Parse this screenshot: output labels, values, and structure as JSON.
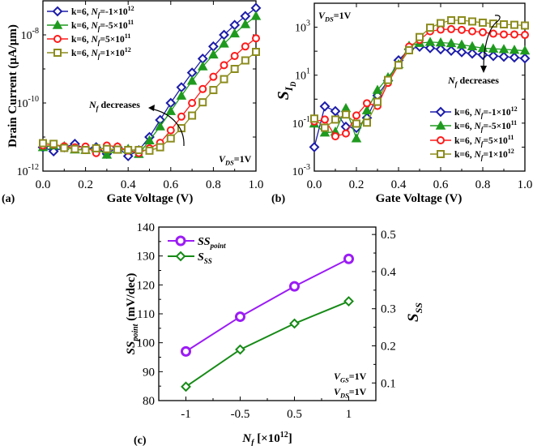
{
  "colors": {
    "blue": "#1c1caa",
    "green": "#1f9a1f",
    "red": "#ff1a1a",
    "olive": "#8c8c1e",
    "purple": "#9b1cf5",
    "dgreen": "#168a16"
  },
  "chart_data": [
    {
      "panel": "(a)",
      "type": "line",
      "xlabel": "Gate Voltage (V)",
      "ylabel": "Drain Current (μA/μm)",
      "yscale": "log",
      "xlim": [
        0,
        1
      ],
      "ylim_log10": [
        -12,
        -7
      ],
      "xticks": [
        "0.0",
        "0.2",
        "0.4",
        "0.6",
        "0.8",
        "1.0"
      ],
      "yticks": [
        {
          "base": "10",
          "exp": "-12",
          "v": -12
        },
        {
          "base": "10",
          "exp": "-10",
          "v": -10
        },
        {
          "base": "10",
          "exp": "-8",
          "v": -8
        }
      ],
      "annotation": {
        "var": "N",
        "sub": "f",
        "text": " decreases"
      },
      "condition": {
        "var": "V",
        "sub": "DS",
        "text": "=1V"
      },
      "x": [
        0,
        0.05,
        0.1,
        0.15,
        0.2,
        0.25,
        0.3,
        0.35,
        0.4,
        0.45,
        0.5,
        0.55,
        0.6,
        0.65,
        0.7,
        0.75,
        0.8,
        0.85,
        0.9,
        0.95,
        1.0
      ],
      "series": [
        {
          "name": "k=6, Nf=-1×10^12",
          "pre": "k=6, ",
          "var": "N",
          "sub": "f",
          "mid": "=-1×10",
          "exp": "12",
          "color": "blue",
          "marker": "diamond",
          "log10_values": [
            -11.3,
            -11.42,
            -11.3,
            -11.2,
            -11.35,
            -11.3,
            -11.49,
            -11.3,
            -11.56,
            -11.39,
            -11.0,
            -10.5,
            -10.0,
            -9.54,
            -9.11,
            -8.7,
            -8.34,
            -8.0,
            -7.71,
            -7.45,
            -7.21
          ]
        },
        {
          "name": "k=6, Nf=-5×10^11",
          "pre": "k=6, ",
          "var": "N",
          "sub": "f",
          "mid": "=-5×10",
          "exp": "11",
          "color": "green",
          "marker": "triangle",
          "log10_values": [
            -11.3,
            -11.25,
            -11.27,
            -11.37,
            -11.38,
            -11.33,
            -11.52,
            -11.37,
            -11.35,
            -11.5,
            -11.1,
            -10.69,
            -10.24,
            -9.79,
            -9.35,
            -8.93,
            -8.58,
            -8.26,
            -7.96,
            -7.69,
            -7.45
          ]
        },
        {
          "name": "k=6, Nf=5×10^11",
          "pre": "k=6, ",
          "var": "N",
          "sub": "f",
          "mid": "=5×10",
          "exp": "11",
          "color": "red",
          "marker": "circle",
          "log10_values": [
            -11.25,
            -11.22,
            -11.27,
            -11.3,
            -11.28,
            -11.47,
            -11.25,
            -11.28,
            -11.4,
            -11.47,
            -11.33,
            -11.17,
            -10.8,
            -10.4,
            -10.0,
            -9.59,
            -9.23,
            -8.89,
            -8.62,
            -8.34,
            -8.1
          ]
        },
        {
          "name": "k=6, Nf=1×10^12",
          "pre": "k=6, ",
          "var": "N",
          "sub": "f",
          "mid": "=1×10",
          "exp": "12",
          "color": "olive",
          "marker": "square",
          "log10_values": [
            -11.18,
            -11.2,
            -11.32,
            -11.35,
            -11.38,
            -11.33,
            -11.35,
            -11.37,
            -11.38,
            -11.38,
            -11.4,
            -11.3,
            -11.04,
            -10.74,
            -10.37,
            -9.98,
            -9.62,
            -9.3,
            -9.0,
            -8.75,
            -8.5
          ]
        }
      ]
    },
    {
      "panel": "(b)",
      "type": "line",
      "xlabel": "Gate Voltage (V)",
      "ylabel": {
        "var": "S",
        "sub": "I",
        "subsub": "D"
      },
      "yscale": "log",
      "xlim": [
        0,
        1
      ],
      "ylim_log10": [
        -3,
        4
      ],
      "xticks": [
        "0.0",
        "0.2",
        "0.4",
        "0.6",
        "0.8",
        "1.0"
      ],
      "yticks": [
        {
          "base": "10",
          "exp": "-3",
          "v": -3
        },
        {
          "base": "10",
          "exp": "-1",
          "v": -1
        },
        {
          "base": "10",
          "exp": "1",
          "v": 1
        },
        {
          "base": "10",
          "exp": "3",
          "v": 3
        }
      ],
      "annotation": {
        "var": "N",
        "sub": "f",
        "text": " decreases"
      },
      "condition": {
        "var": "V",
        "sub": "DS",
        "text": "=1V"
      },
      "x": [
        0,
        0.05,
        0.1,
        0.15,
        0.2,
        0.25,
        0.3,
        0.35,
        0.4,
        0.45,
        0.5,
        0.55,
        0.6,
        0.65,
        0.7,
        0.75,
        0.8,
        0.85,
        0.9,
        0.95,
        1.0
      ],
      "series": [
        {
          "name": "k=6, Nf=-1×10^12",
          "pre": "k=6, ",
          "var": "N",
          "sub": "f",
          "mid": "=-1×10",
          "exp": "12",
          "color": "blue",
          "marker": "diamond",
          "log10_values": [
            -2.0,
            -0.3,
            -0.5,
            -1.15,
            -1.2,
            -0.78,
            0.15,
            0.77,
            1.62,
            2.08,
            2.19,
            2.13,
            2.08,
            2.02,
            1.96,
            1.9,
            1.85,
            1.8,
            1.77,
            1.74,
            1.7
          ]
        },
        {
          "name": "k=6, Nf=-5×10^11",
          "pre": "k=6, ",
          "var": "N",
          "sub": "f",
          "mid": "=-5×10",
          "exp": "11",
          "color": "green",
          "marker": "triangle",
          "log10_values": [
            -1.02,
            -1.4,
            -1.36,
            -0.38,
            -1.64,
            -0.47,
            0.38,
            0.91,
            1.45,
            2.22,
            2.34,
            2.38,
            2.36,
            2.33,
            2.27,
            2.2,
            2.13,
            2.1,
            2.08,
            2.05,
            2.02
          ]
        },
        {
          "name": "k=6, Nf=5×10^11",
          "pre": "k=6, ",
          "var": "N",
          "sub": "f",
          "mid": "=5×10",
          "exp": "11",
          "color": "red",
          "marker": "circle",
          "log10_values": [
            -0.93,
            -0.85,
            -1.55,
            -1.43,
            -0.68,
            -0.17,
            -0.28,
            0.68,
            1.42,
            2.19,
            2.47,
            2.83,
            2.9,
            2.92,
            2.89,
            2.83,
            2.79,
            2.73,
            2.7,
            2.7,
            2.68
          ]
        },
        {
          "name": "k=6, Nf=1×10^12",
          "pre": "k=6, ",
          "var": "N",
          "sub": "f",
          "mid": "=1×10",
          "exp": "12",
          "color": "olive",
          "marker": "square",
          "log10_values": [
            -0.81,
            -1.19,
            -0.85,
            -0.64,
            -1.02,
            -0.98,
            -0.11,
            0.8,
            1.42,
            2.04,
            2.59,
            2.98,
            3.17,
            3.29,
            3.29,
            3.24,
            3.19,
            3.15,
            3.12,
            3.1,
            3.07
          ]
        }
      ]
    },
    {
      "panel": "(c)",
      "type": "line",
      "xlabel": {
        "var": "N",
        "sub": "f",
        "text": " [×10",
        "exp": "12",
        "end": "]"
      },
      "ylabel_left": {
        "var": "SS",
        "sub": "point",
        "text": " (mV/dec)"
      },
      "ylabel_right": {
        "var": "S",
        "sub": "SS"
      },
      "categories": [
        "-1",
        "-0.5",
        "0.5",
        "1"
      ],
      "ylim_left": [
        80,
        140
      ],
      "ylim_right": [
        0.0525,
        0.52
      ],
      "yticks_left": [
        "80",
        "90",
        "100",
        "110",
        "120",
        "130",
        "140"
      ],
      "yticks_right": [
        "0.1",
        "0.2",
        "0.3",
        "0.4",
        "0.5"
      ],
      "conditions": [
        {
          "var": "V",
          "sub": "GS",
          "text": "=1V"
        },
        {
          "var": "V",
          "sub": "DS",
          "text": "=1V"
        }
      ],
      "series": [
        {
          "name": "SS_point",
          "var": "SS",
          "sub": "point",
          "axis": "left",
          "color": "purple",
          "marker": "octagon",
          "values": [
            97,
            109,
            119.5,
            129
          ]
        },
        {
          "name": "S_SS",
          "var": "S",
          "sub": "SS",
          "axis": "right",
          "color": "dgreen",
          "marker": "diamond",
          "values": [
            0.09,
            0.19,
            0.26,
            0.32
          ]
        }
      ]
    }
  ]
}
